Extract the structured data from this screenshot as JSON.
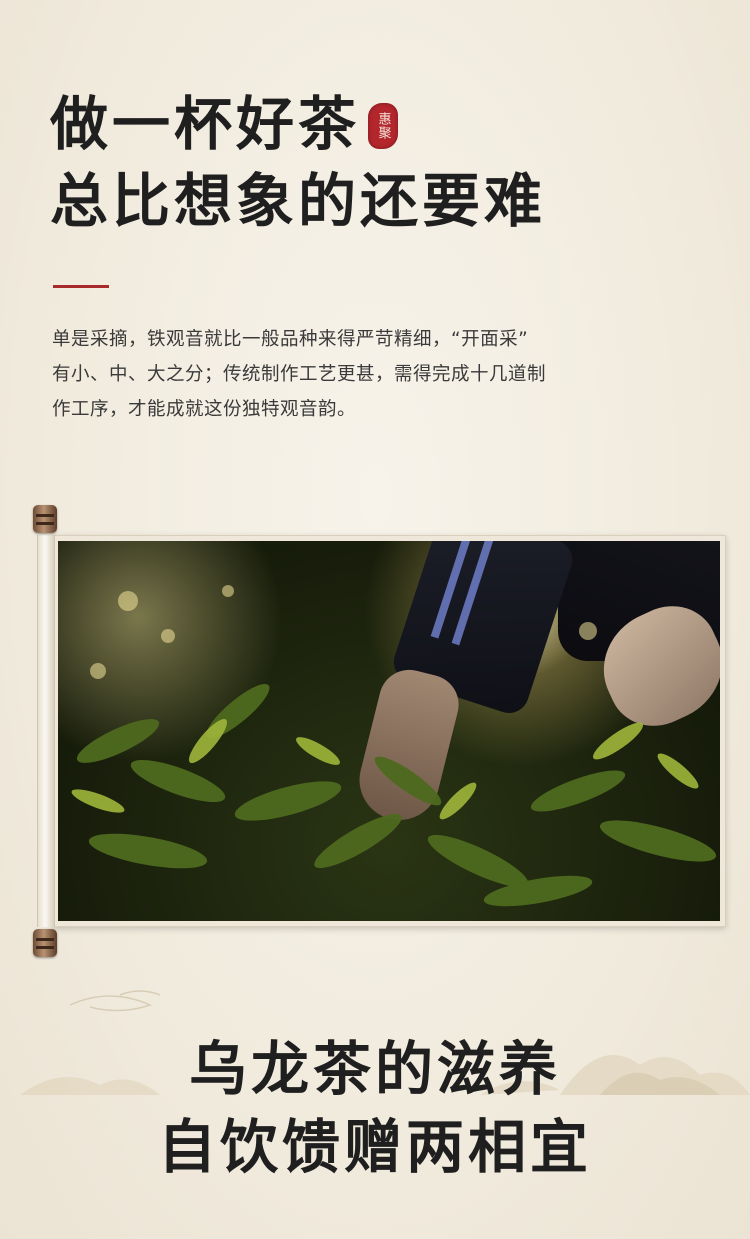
{
  "header": {
    "title_line1": "做一杯好茶",
    "title_line2": "总比想象的还要难",
    "seal_text": "惠聚"
  },
  "intro": {
    "lines": [
      "单是采摘，铁观音就比一般品种来得严苛精细，“开面采”",
      "有小、中、大之分；传统制作工艺更甚，需得完成十几道制",
      "作工序，才能成就这份独特观音韵。"
    ]
  },
  "footer": {
    "heading_line1": "乌龙茶的滋养",
    "heading_line2": "自饮馈赠两相宜"
  },
  "colors": {
    "accent": "#a82a2a",
    "background": "#f3eee3",
    "text": "#1f1f1f"
  }
}
